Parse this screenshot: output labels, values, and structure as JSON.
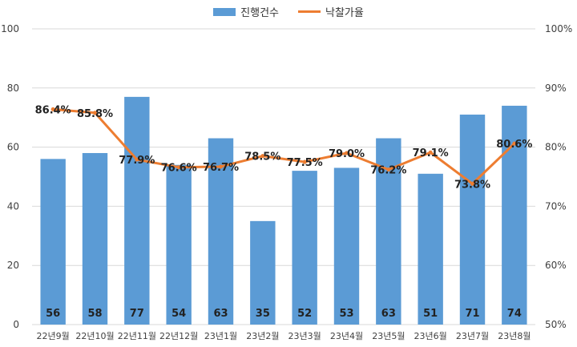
{
  "chart_data": {
    "type": "bar",
    "categories": [
      "22년9월",
      "22년10월",
      "22년11월",
      "22년12월",
      "23년1월",
      "23년2월",
      "23년3월",
      "23년4월",
      "23년5월",
      "23년6월",
      "23년7월",
      "23년8월"
    ],
    "series": [
      {
        "name": "진행건수",
        "type": "bar",
        "axis": "left",
        "color": "#5b9bd5",
        "values": [
          56,
          58,
          77,
          54,
          63,
          35,
          52,
          53,
          63,
          51,
          71,
          74
        ],
        "labels": [
          "56",
          "58",
          "77",
          "54",
          "63",
          "35",
          "52",
          "53",
          "63",
          "51",
          "71",
          "74"
        ]
      },
      {
        "name": "낙찰가율",
        "type": "line",
        "axis": "right",
        "color": "#ed7d31",
        "values": [
          86.4,
          85.8,
          77.9,
          76.6,
          76.7,
          78.5,
          77.5,
          79.0,
          76.2,
          79.1,
          73.8,
          80.6
        ],
        "labels": [
          "86.4%",
          "85.8%",
          "77.9%",
          "76.6%",
          "76.7%",
          "78.5%",
          "77.5%",
          "79.0%",
          "76.2%",
          "79.1%",
          "73.8%",
          "80.6%"
        ]
      }
    ],
    "ylim": [
      0,
      100
    ],
    "y2lim": [
      50,
      100
    ],
    "yticks": [
      "0",
      "20",
      "40",
      "60",
      "80",
      "100"
    ],
    "y2ticks": [
      "50%",
      "60%",
      "70%",
      "80%",
      "90%",
      "100%"
    ],
    "grid": true,
    "legend_position": "top"
  }
}
